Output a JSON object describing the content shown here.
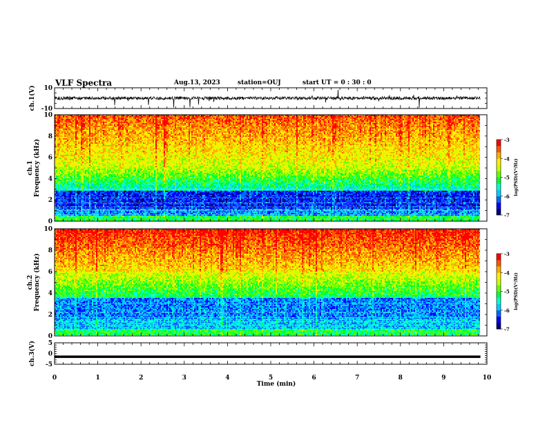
{
  "header": {
    "title": "VLF Spectra",
    "date": "Aug.13, 2023",
    "station": "station=OUJ",
    "start": "start UT =  0 : 30 : 0"
  },
  "chart_data": [
    {
      "type": "line",
      "name": "ch1-waveform",
      "ylabel": "ch.1(V)",
      "ylim": [
        -10,
        10
      ],
      "yticks": [
        "10",
        "-10"
      ],
      "xlim": [
        0,
        10
      ],
      "data_end_min": 9.85,
      "baseline": 0,
      "noise_amplitude": 1.5
    },
    {
      "type": "heatmap",
      "name": "ch1-spectrogram",
      "ylabel": "ch.1 Frequency (kHz)",
      "ylabel_lines": [
        "ch.1",
        "Frequency (kHz)"
      ],
      "ylim": [
        0,
        10
      ],
      "yticks": [
        "0",
        "2",
        "4",
        "6",
        "8",
        "10"
      ],
      "xlim": [
        0,
        10
      ],
      "data_end_min": 9.85,
      "colorbar": {
        "label": "log(PSD)(V²/Hz)",
        "range": [
          -7,
          -3
        ],
        "ticks": [
          "-3",
          "-4",
          "-5",
          "-6",
          "-7"
        ]
      }
    },
    {
      "type": "heatmap",
      "name": "ch2-spectrogram",
      "ylabel": "ch.2 Frequency (kHz)",
      "ylabel_lines": [
        "ch.2",
        "Frequency (kHz)"
      ],
      "ylim": [
        0,
        10
      ],
      "yticks": [
        "0",
        "2",
        "4",
        "6",
        "8",
        "10"
      ],
      "xlim": [
        0,
        10
      ],
      "data_end_min": 9.85,
      "colorbar": {
        "label": "log(PSD)(V²/Hz)",
        "range": [
          -7,
          -3
        ],
        "ticks": [
          "-3",
          "-4",
          "-5",
          "-6",
          "-7"
        ]
      }
    },
    {
      "type": "line",
      "name": "ch3-waveform",
      "ylabel": "ch.3(V)",
      "ylim": [
        -5,
        5
      ],
      "yticks": [
        "5",
        "0",
        "-5"
      ],
      "xlim": [
        0,
        10
      ],
      "data_end_min": 9.85,
      "constant_value": -1.5
    }
  ],
  "xaxis": {
    "label": "Time (min)",
    "ticks": [
      "0",
      "1",
      "2",
      "3",
      "4",
      "5",
      "6",
      "7",
      "8",
      "9",
      "10"
    ]
  },
  "colormap": [
    "#00007a",
    "#0000ff",
    "#0066ff",
    "#00ccff",
    "#00ffcc",
    "#00ff33",
    "#66ff00",
    "#ccff00",
    "#ffee00",
    "#ffaa00",
    "#ff5500",
    "#ff0000"
  ]
}
